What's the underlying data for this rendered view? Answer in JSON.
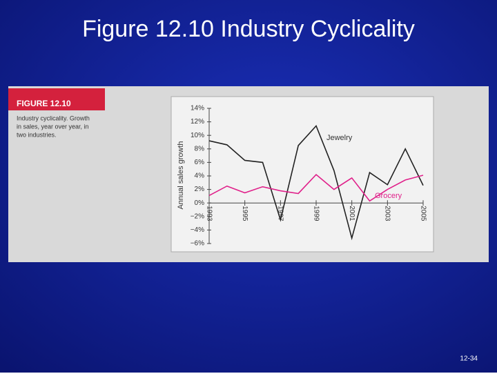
{
  "slide_title": "Figure 12.10 Industry Cyclicality",
  "figure_label": "FIGURE 12.10",
  "caption": [
    "Industry cyclicality. Growth",
    "in sales, year over year, in",
    "two industries."
  ],
  "page_number": "12-34",
  "chart_data": {
    "type": "line",
    "ylabel": "Annual sales growth",
    "x": [
      1993,
      1994,
      1995,
      1996,
      1997,
      1998,
      1999,
      2000,
      2001,
      2002,
      2003,
      2004,
      2005
    ],
    "xlim": [
      1993,
      2005
    ],
    "xticks": [
      1993,
      1995,
      1997,
      1999,
      2001,
      2003,
      2005
    ],
    "ylim": [
      -6,
      14
    ],
    "yticks": [
      {
        "value": -6,
        "label": "−6%"
      },
      {
        "value": -4,
        "label": "−4%"
      },
      {
        "value": -2,
        "label": "−2%"
      },
      {
        "value": 0,
        "label": "0%"
      },
      {
        "value": 2,
        "label": "2%"
      },
      {
        "value": 4,
        "label": "4%"
      },
      {
        "value": 6,
        "label": "6%"
      },
      {
        "value": 8,
        "label": "8%"
      },
      {
        "value": 10,
        "label": "10%"
      },
      {
        "value": 12,
        "label": "12%"
      },
      {
        "value": 14,
        "label": "14%"
      }
    ],
    "series": [
      {
        "name": "Jewelry",
        "color": "#222222",
        "values": [
          9.2,
          8.6,
          6.3,
          6.0,
          -2.5,
          8.5,
          11.4,
          4.8,
          -5.2,
          4.5,
          2.7,
          8.0,
          2.6
        ]
      },
      {
        "name": "Grocery",
        "color": "#e0208a",
        "values": [
          1.1,
          2.5,
          1.5,
          2.4,
          1.8,
          1.4,
          4.2,
          2.0,
          3.7,
          0.3,
          2.0,
          3.4,
          4.1
        ]
      }
    ]
  }
}
